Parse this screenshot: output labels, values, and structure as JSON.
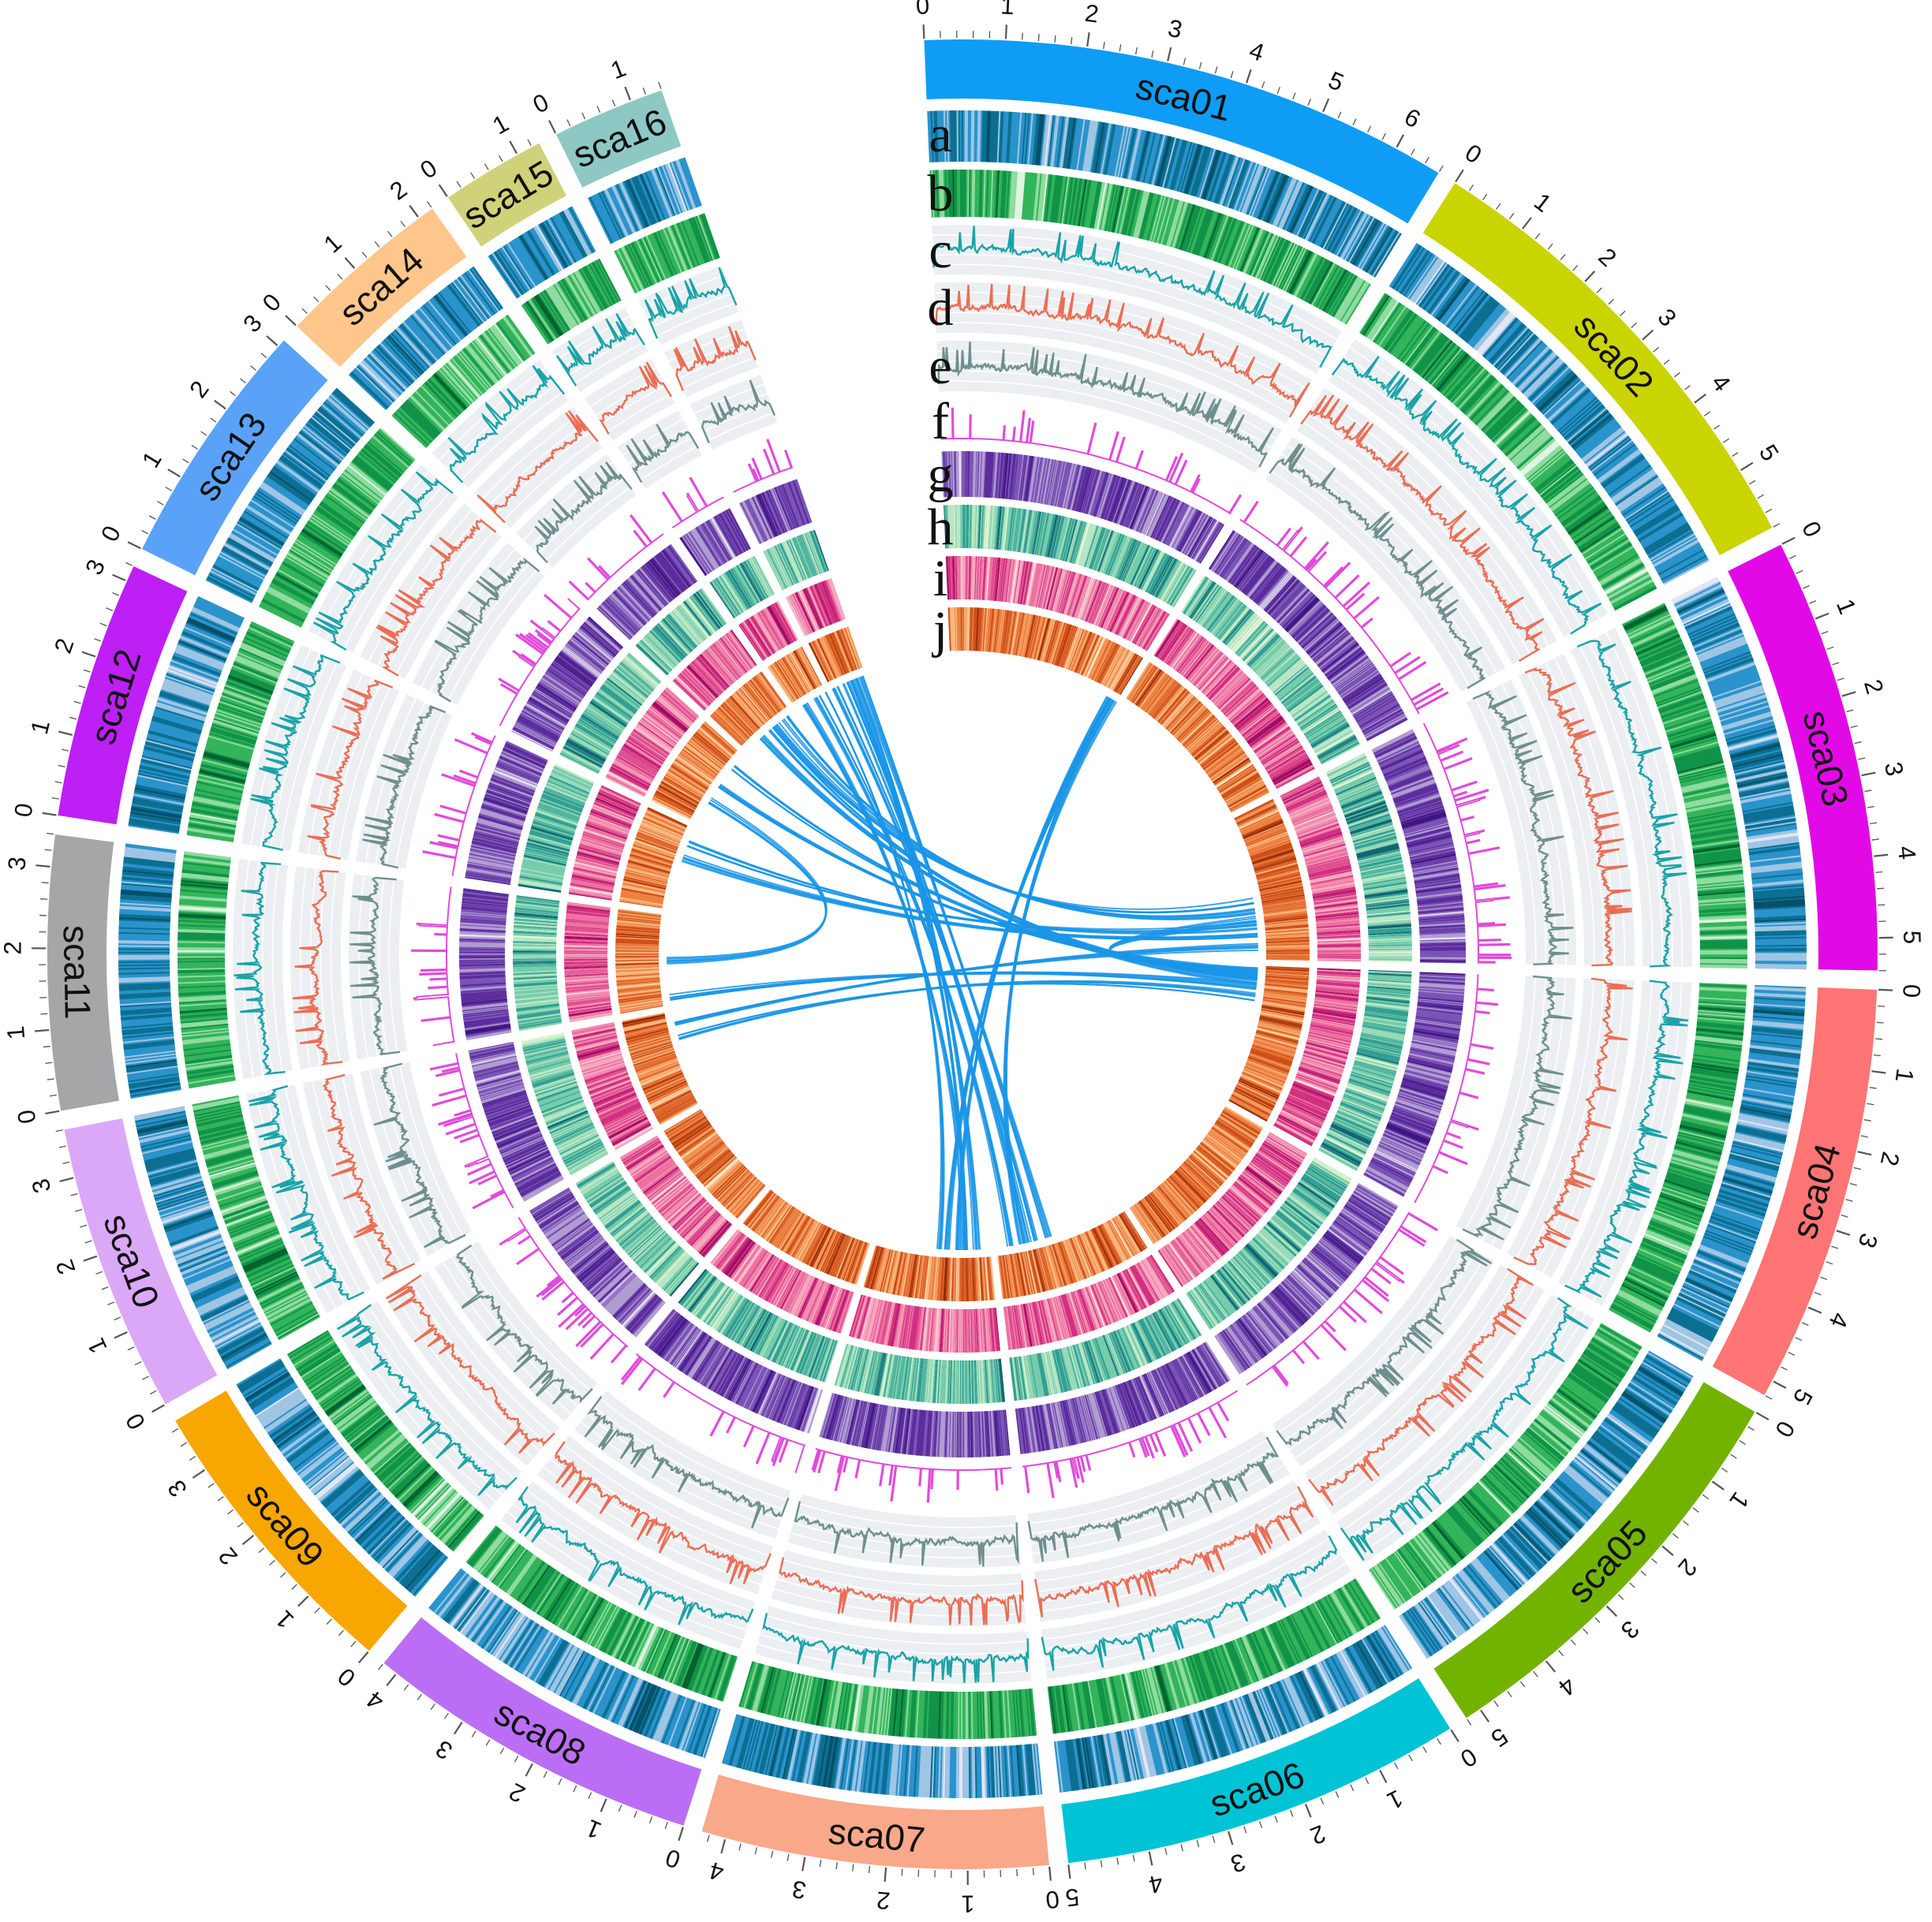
{
  "figure": {
    "track_letters": [
      "a",
      "b",
      "c",
      "d",
      "e",
      "f",
      "g",
      "h",
      "i",
      "j"
    ]
  },
  "chromosomes": [
    {
      "name": "sca01",
      "length": 6.6,
      "color": "#0f9cf5",
      "ticks": [
        "0",
        "1",
        "2",
        "3",
        "4",
        "5",
        "6"
      ]
    },
    {
      "name": "sca02",
      "length": 5.8,
      "color": "#c9d400",
      "ticks": [
        "0",
        "1",
        "2",
        "3",
        "4",
        "5"
      ]
    },
    {
      "name": "sca03",
      "length": 5.4,
      "color": "#e10ae6",
      "ticks": [
        "0",
        "1",
        "2",
        "3",
        "4",
        "5"
      ]
    },
    {
      "name": "sca04",
      "length": 5.2,
      "color": "#ff7474",
      "ticks": [
        "0",
        "1",
        "2",
        "3",
        "4",
        "5"
      ]
    },
    {
      "name": "sca05",
      "length": 5.2,
      "color": "#72b300",
      "ticks": [
        "0",
        "1",
        "2",
        "3",
        "4",
        "5"
      ]
    },
    {
      "name": "sca06",
      "length": 5.0,
      "color": "#00c3d6",
      "ticks": [
        "0",
        "1",
        "2",
        "3",
        "4",
        "5"
      ]
    },
    {
      "name": "sca07",
      "length": 4.3,
      "color": "#f9a88a",
      "ticks": [
        "0",
        "1",
        "2",
        "3",
        "4"
      ]
    },
    {
      "name": "sca08",
      "length": 4.2,
      "color": "#bb6ef5",
      "ticks": [
        "0",
        "1",
        "2",
        "3",
        "4"
      ]
    },
    {
      "name": "sca09",
      "length": 3.7,
      "color": "#f8a600",
      "ticks": [
        "0",
        "1",
        "2",
        "3"
      ]
    },
    {
      "name": "sca10",
      "length": 3.6,
      "color": "#dba8f8",
      "ticks": [
        "0",
        "1",
        "2",
        "3"
      ]
    },
    {
      "name": "sca11",
      "length": 3.4,
      "color": "#a5a6a8",
      "ticks": [
        "0",
        "1",
        "2",
        "3"
      ]
    },
    {
      "name": "sca12",
      "length": 3.2,
      "color": "#bd1ff5",
      "ticks": [
        "0",
        "1",
        "2",
        "3"
      ]
    },
    {
      "name": "sca13",
      "length": 3.1,
      "color": "#5aa2f8",
      "ticks": [
        "0",
        "1",
        "2",
        "3"
      ]
    },
    {
      "name": "sca14",
      "length": 2.2,
      "color": "#ffc68b",
      "ticks": [
        "0",
        "1",
        "2"
      ]
    },
    {
      "name": "sca15",
      "length": 1.3,
      "color": "#d0d27a",
      "ticks": [
        "0",
        "1"
      ]
    },
    {
      "name": "sca16",
      "length": 1.4,
      "color": "#8ec8c4",
      "ticks": [
        "0",
        "1"
      ]
    }
  ],
  "tracks": [
    {
      "id": "a",
      "type": "heatmap",
      "palette": [
        "#e2e6f5",
        "#9fc5e3",
        "#2a93cc",
        "#0c6f92",
        "#06506a"
      ]
    },
    {
      "id": "b",
      "type": "heatmap",
      "palette": [
        "#dff5e2",
        "#8fdba0",
        "#33b45a",
        "#109348",
        "#05622f"
      ]
    },
    {
      "id": "c",
      "type": "line",
      "color": "#1aa3a8"
    },
    {
      "id": "d",
      "type": "line",
      "color": "#ea6e55"
    },
    {
      "id": "e",
      "type": "line",
      "color": "#6f8f8f"
    },
    {
      "id": "f",
      "type": "step",
      "color": "#e24adc"
    },
    {
      "id": "g",
      "type": "heatmap",
      "palette": [
        "#e8e3f3",
        "#b09bd1",
        "#7a52b5",
        "#5a2a9c",
        "#3d1380"
      ]
    },
    {
      "id": "h",
      "type": "heatmap",
      "palette": [
        "#eaf8d8",
        "#b8e6c3",
        "#74cbaa",
        "#2f9d93",
        "#10606e"
      ]
    },
    {
      "id": "i",
      "type": "heatmap",
      "palette": [
        "#fde2e2",
        "#f6a7bd",
        "#ec6e9f",
        "#d02b7e",
        "#9b0a5f"
      ]
    },
    {
      "id": "j",
      "type": "heatmap",
      "palette": [
        "#fde6c8",
        "#f8b47a",
        "#ed7d3b",
        "#cc4a12",
        "#8e2405"
      ]
    }
  ],
  "links": {
    "color": "#1a95e6"
  }
}
